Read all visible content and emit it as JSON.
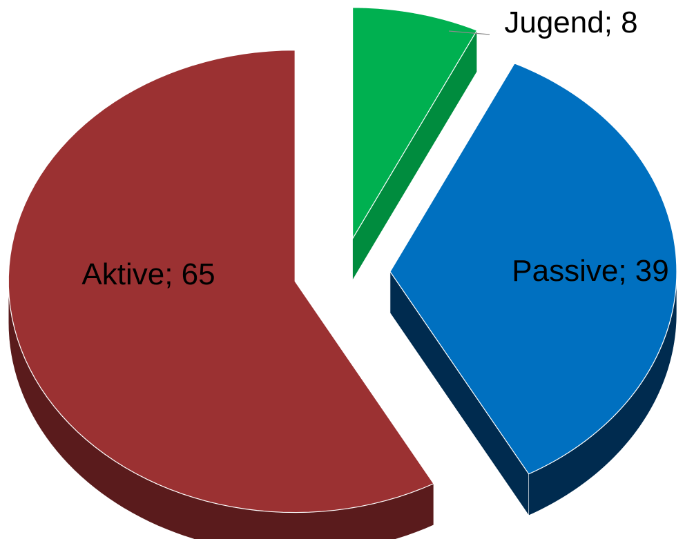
{
  "chart_data": {
    "type": "pie",
    "categories": [
      "Jugend",
      "Passive",
      "Aktive"
    ],
    "values": [
      8,
      39,
      65
    ],
    "colors": [
      "#00b050",
      "#0070c0",
      "#9b3132"
    ],
    "side_colors": [
      "#008c3e",
      "#002b4f",
      "#5a1b1c"
    ],
    "label_separator": "; "
  }
}
